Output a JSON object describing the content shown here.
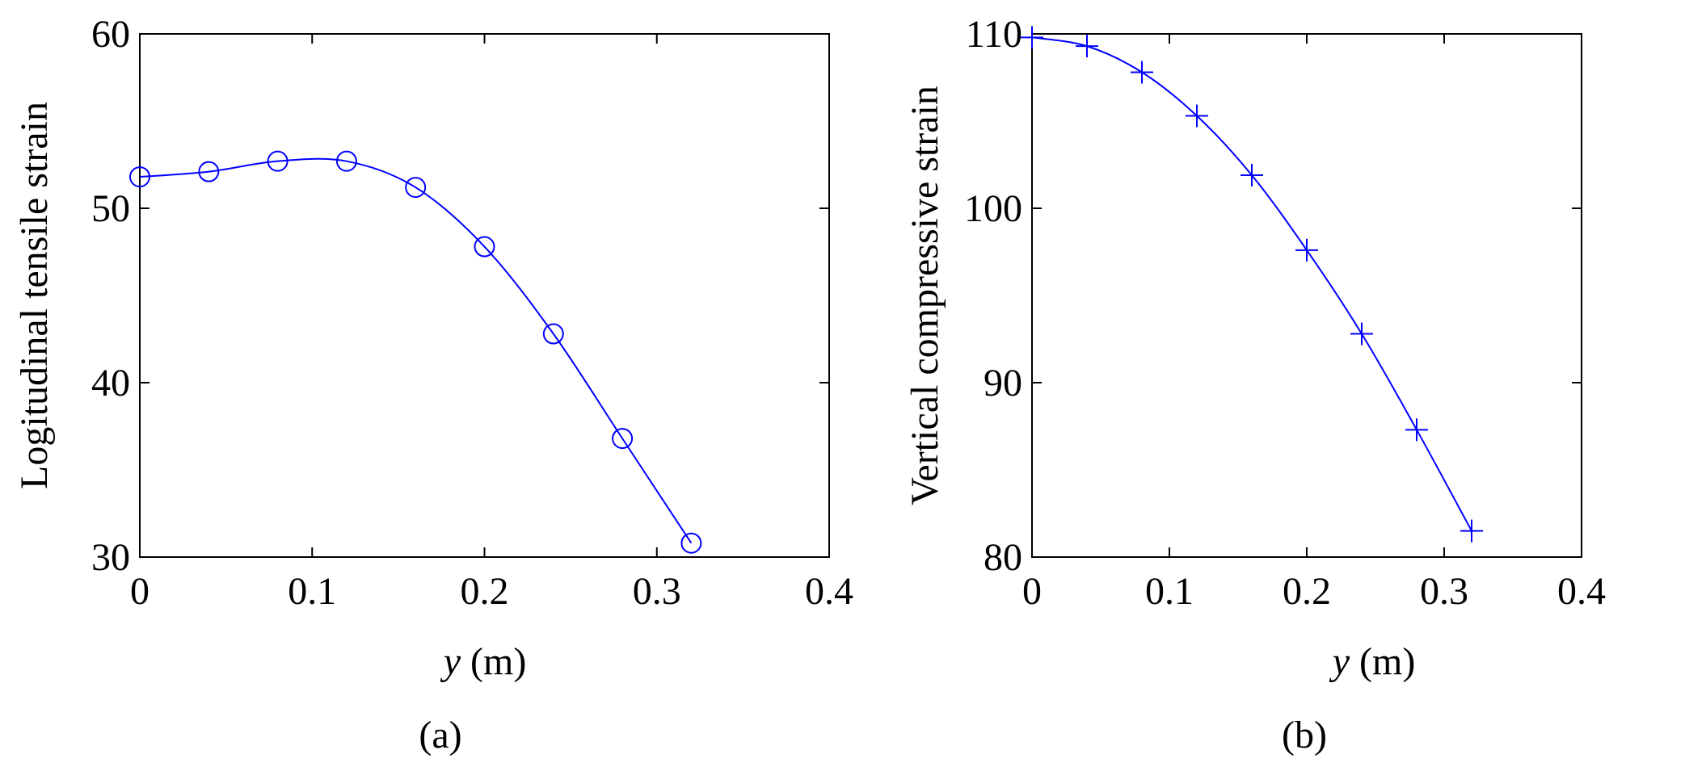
{
  "chart_data": [
    {
      "type": "line",
      "caption": "(a)",
      "title": "",
      "xlabel_var": "y",
      "xlabel_unit": " (m)",
      "ylabel": "Logitudinal tensile strain",
      "xlim": [
        0,
        0.4
      ],
      "ylim": [
        30,
        60
      ],
      "xticks": [
        "0",
        "0.1",
        "0.2",
        "0.3",
        "0.4"
      ],
      "yticks": [
        "30",
        "40",
        "50",
        "60"
      ],
      "marker": "circle",
      "color": "#0000ff",
      "series": [
        {
          "x": [
            0,
            0.04,
            0.08,
            0.12,
            0.16,
            0.2,
            0.24,
            0.28,
            0.32
          ],
          "y": [
            51.8,
            52.1,
            52.7,
            52.7,
            51.2,
            47.8,
            42.8,
            36.8,
            30.8
          ]
        }
      ]
    },
    {
      "type": "line",
      "caption": "(b)",
      "title": "",
      "xlabel_var": "y",
      "xlabel_unit": " (m)",
      "ylabel": "Vertical compressive strain",
      "xlim": [
        0,
        0.4
      ],
      "ylim": [
        80,
        110
      ],
      "xticks": [
        "0",
        "0.1",
        "0.2",
        "0.3",
        "0.4"
      ],
      "yticks": [
        "80",
        "90",
        "100",
        "110"
      ],
      "marker": "plus",
      "color": "#0000ff",
      "series": [
        {
          "x": [
            0,
            0.04,
            0.08,
            0.12,
            0.16,
            0.2,
            0.24,
            0.28,
            0.32
          ],
          "y": [
            109.8,
            109.3,
            107.8,
            105.3,
            101.9,
            97.6,
            92.8,
            87.3,
            81.5
          ]
        }
      ]
    }
  ]
}
